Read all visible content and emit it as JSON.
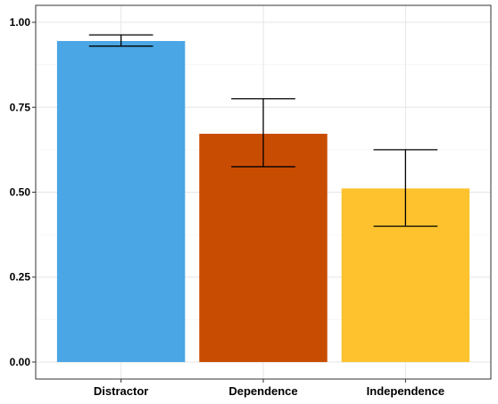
{
  "chart_data": {
    "type": "bar",
    "title": "",
    "xlabel": "",
    "ylabel": "",
    "categories": [
      "Distractor",
      "Dependence",
      "Independence"
    ],
    "values": [
      0.945,
      0.672,
      0.511
    ],
    "error_low": [
      0.93,
      0.575,
      0.4
    ],
    "error_high": [
      0.963,
      0.775,
      0.625
    ],
    "colors": [
      "#4aa6e4",
      "#c94c03",
      "#fdc22e"
    ],
    "ylim": [
      0,
      1
    ],
    "yticks": [
      0.0,
      0.25,
      0.5,
      0.75,
      1.0
    ],
    "ytick_labels": [
      "0.00",
      "0.25",
      "0.50",
      "0.75",
      "1.00"
    ],
    "grid": true,
    "legend": "none"
  }
}
